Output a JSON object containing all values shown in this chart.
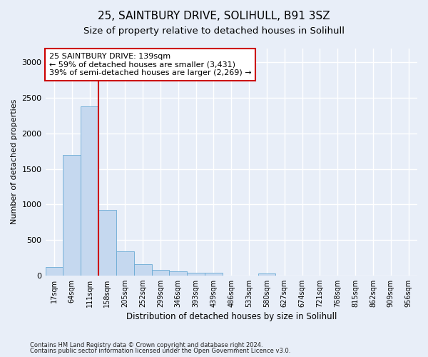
{
  "title": "25, SAINTBURY DRIVE, SOLIHULL, B91 3SZ",
  "subtitle": "Size of property relative to detached houses in Solihull",
  "xlabel": "Distribution of detached houses by size in Solihull",
  "ylabel": "Number of detached properties",
  "footnote1": "Contains HM Land Registry data © Crown copyright and database right 2024.",
  "footnote2": "Contains public sector information licensed under the Open Government Licence v3.0.",
  "bin_labels": [
    "17sqm",
    "64sqm",
    "111sqm",
    "158sqm",
    "205sqm",
    "252sqm",
    "299sqm",
    "346sqm",
    "393sqm",
    "439sqm",
    "486sqm",
    "533sqm",
    "580sqm",
    "627sqm",
    "674sqm",
    "721sqm",
    "768sqm",
    "815sqm",
    "862sqm",
    "909sqm",
    "956sqm"
  ],
  "bar_values": [
    120,
    1700,
    2380,
    920,
    340,
    160,
    80,
    55,
    40,
    35,
    0,
    0,
    30,
    0,
    0,
    0,
    0,
    0,
    0,
    0,
    0
  ],
  "bar_color": "#c5d8ef",
  "bar_edge_color": "#6aaad4",
  "vline_color": "#cc0000",
  "annotation_line1": "25 SAINTBURY DRIVE: 139sqm",
  "annotation_line2": "← 59% of detached houses are smaller (3,431)",
  "annotation_line3": "39% of semi-detached houses are larger (2,269) →",
  "annotation_box_color": "#cc0000",
  "ylim": [
    0,
    3200
  ],
  "yticks": [
    0,
    500,
    1000,
    1500,
    2000,
    2500,
    3000
  ],
  "background_color": "#e8eef8",
  "axes_background": "#e8eef8",
  "grid_color": "#ffffff",
  "title_fontsize": 11,
  "subtitle_fontsize": 9.5,
  "annot_fontsize": 8,
  "ylabel_fontsize": 8,
  "xlabel_fontsize": 8.5
}
